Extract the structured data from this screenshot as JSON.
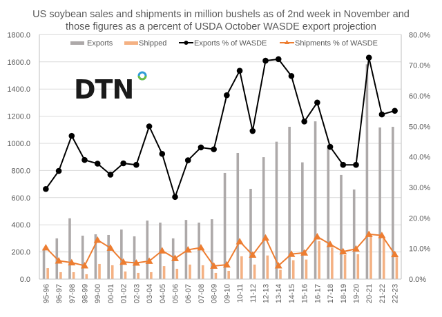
{
  "chart_data": {
    "type": "bar",
    "title": "US soybean sales and shipments in million bushels as of 2nd week in November and those figures as a percent of USDA October WASDE export projection",
    "title_lines": [
      "US soybean sales and shipments in million bushels as of 2nd week in November and",
      "those figures as a percent of USDA October WASDE export projection"
    ],
    "categories": [
      "95-96",
      "96-97",
      "97-98",
      "98-99",
      "99-00",
      "00-01",
      "01-02",
      "02-03",
      "03-04",
      "04-05",
      "05-06",
      "06-07",
      "07-08",
      "08-09",
      "09-10",
      "10-11",
      "11-12",
      "12-13",
      "13-14",
      "14-15",
      "15-16",
      "16-17",
      "17-18",
      "18-19",
      "19-20",
      "20-21",
      "21-22",
      "22-23"
    ],
    "series": [
      {
        "name": "Exports",
        "type": "bar",
        "axis": "left",
        "color": "#ADA9A9",
        "values": [
          225,
          300,
          448,
          320,
          330,
          325,
          365,
          315,
          431,
          416,
          300,
          436,
          416,
          441,
          782,
          929,
          665,
          898,
          1012,
          1122,
          860,
          1162,
          965,
          767,
          660,
          1582,
          1117,
          1122
        ]
      },
      {
        "name": "Shipped",
        "type": "bar",
        "axis": "left",
        "color": "#F4B183",
        "values": [
          81,
          51,
          51,
          36,
          112,
          102,
          56,
          46,
          51,
          96,
          76,
          107,
          102,
          46,
          61,
          168,
          107,
          174,
          68,
          139,
          144,
          280,
          232,
          178,
          183,
          315,
          298,
          161
        ]
      },
      {
        "name": "Exports % of WASDE",
        "type": "line",
        "axis": "right",
        "color": "#000000",
        "marker": "circle",
        "values": [
          29.5,
          35.4,
          46.9,
          39.0,
          37.8,
          34.2,
          37.9,
          37.4,
          50.0,
          41.0,
          26.9,
          38.9,
          43.1,
          42.5,
          60.2,
          68.2,
          48.5,
          71.5,
          72.0,
          66.5,
          51.6,
          57.8,
          43.3,
          37.4,
          37.4,
          72.5,
          53.9,
          55.1
        ]
      },
      {
        "name": "Shipments % of WASDE",
        "type": "line",
        "axis": "right",
        "color": "#ED7D31",
        "marker": "triangle",
        "values": [
          10.3,
          6.0,
          5.4,
          4.4,
          12.8,
          10.2,
          5.6,
          5.3,
          5.9,
          9.3,
          6.8,
          9.6,
          10.3,
          4.3,
          4.7,
          12.3,
          7.9,
          13.5,
          4.4,
          8.2,
          8.6,
          13.9,
          11.4,
          9.0,
          9.9,
          14.7,
          14.3,
          8.1
        ]
      }
    ],
    "ylim": [
      0,
      1800
    ],
    "y_ticks": [
      "0.0",
      "200.0",
      "400.0",
      "600.0",
      "800.0",
      "1000.0",
      "1200.0",
      "1400.0",
      "1600.0",
      "1800.0"
    ],
    "y2lim": [
      0,
      80
    ],
    "y2_ticks": [
      "0.0%",
      "10.0%",
      "20.0%",
      "30.0%",
      "40.0%",
      "50.0%",
      "60.0%",
      "70.0%",
      "80.0%"
    ],
    "xlabel": "",
    "ylabel": "",
    "grid": true,
    "legend_position": "top",
    "logo": {
      "text": "DTN",
      "ring_colors": [
        "#2E9BD6",
        "#6BBE45"
      ]
    }
  }
}
